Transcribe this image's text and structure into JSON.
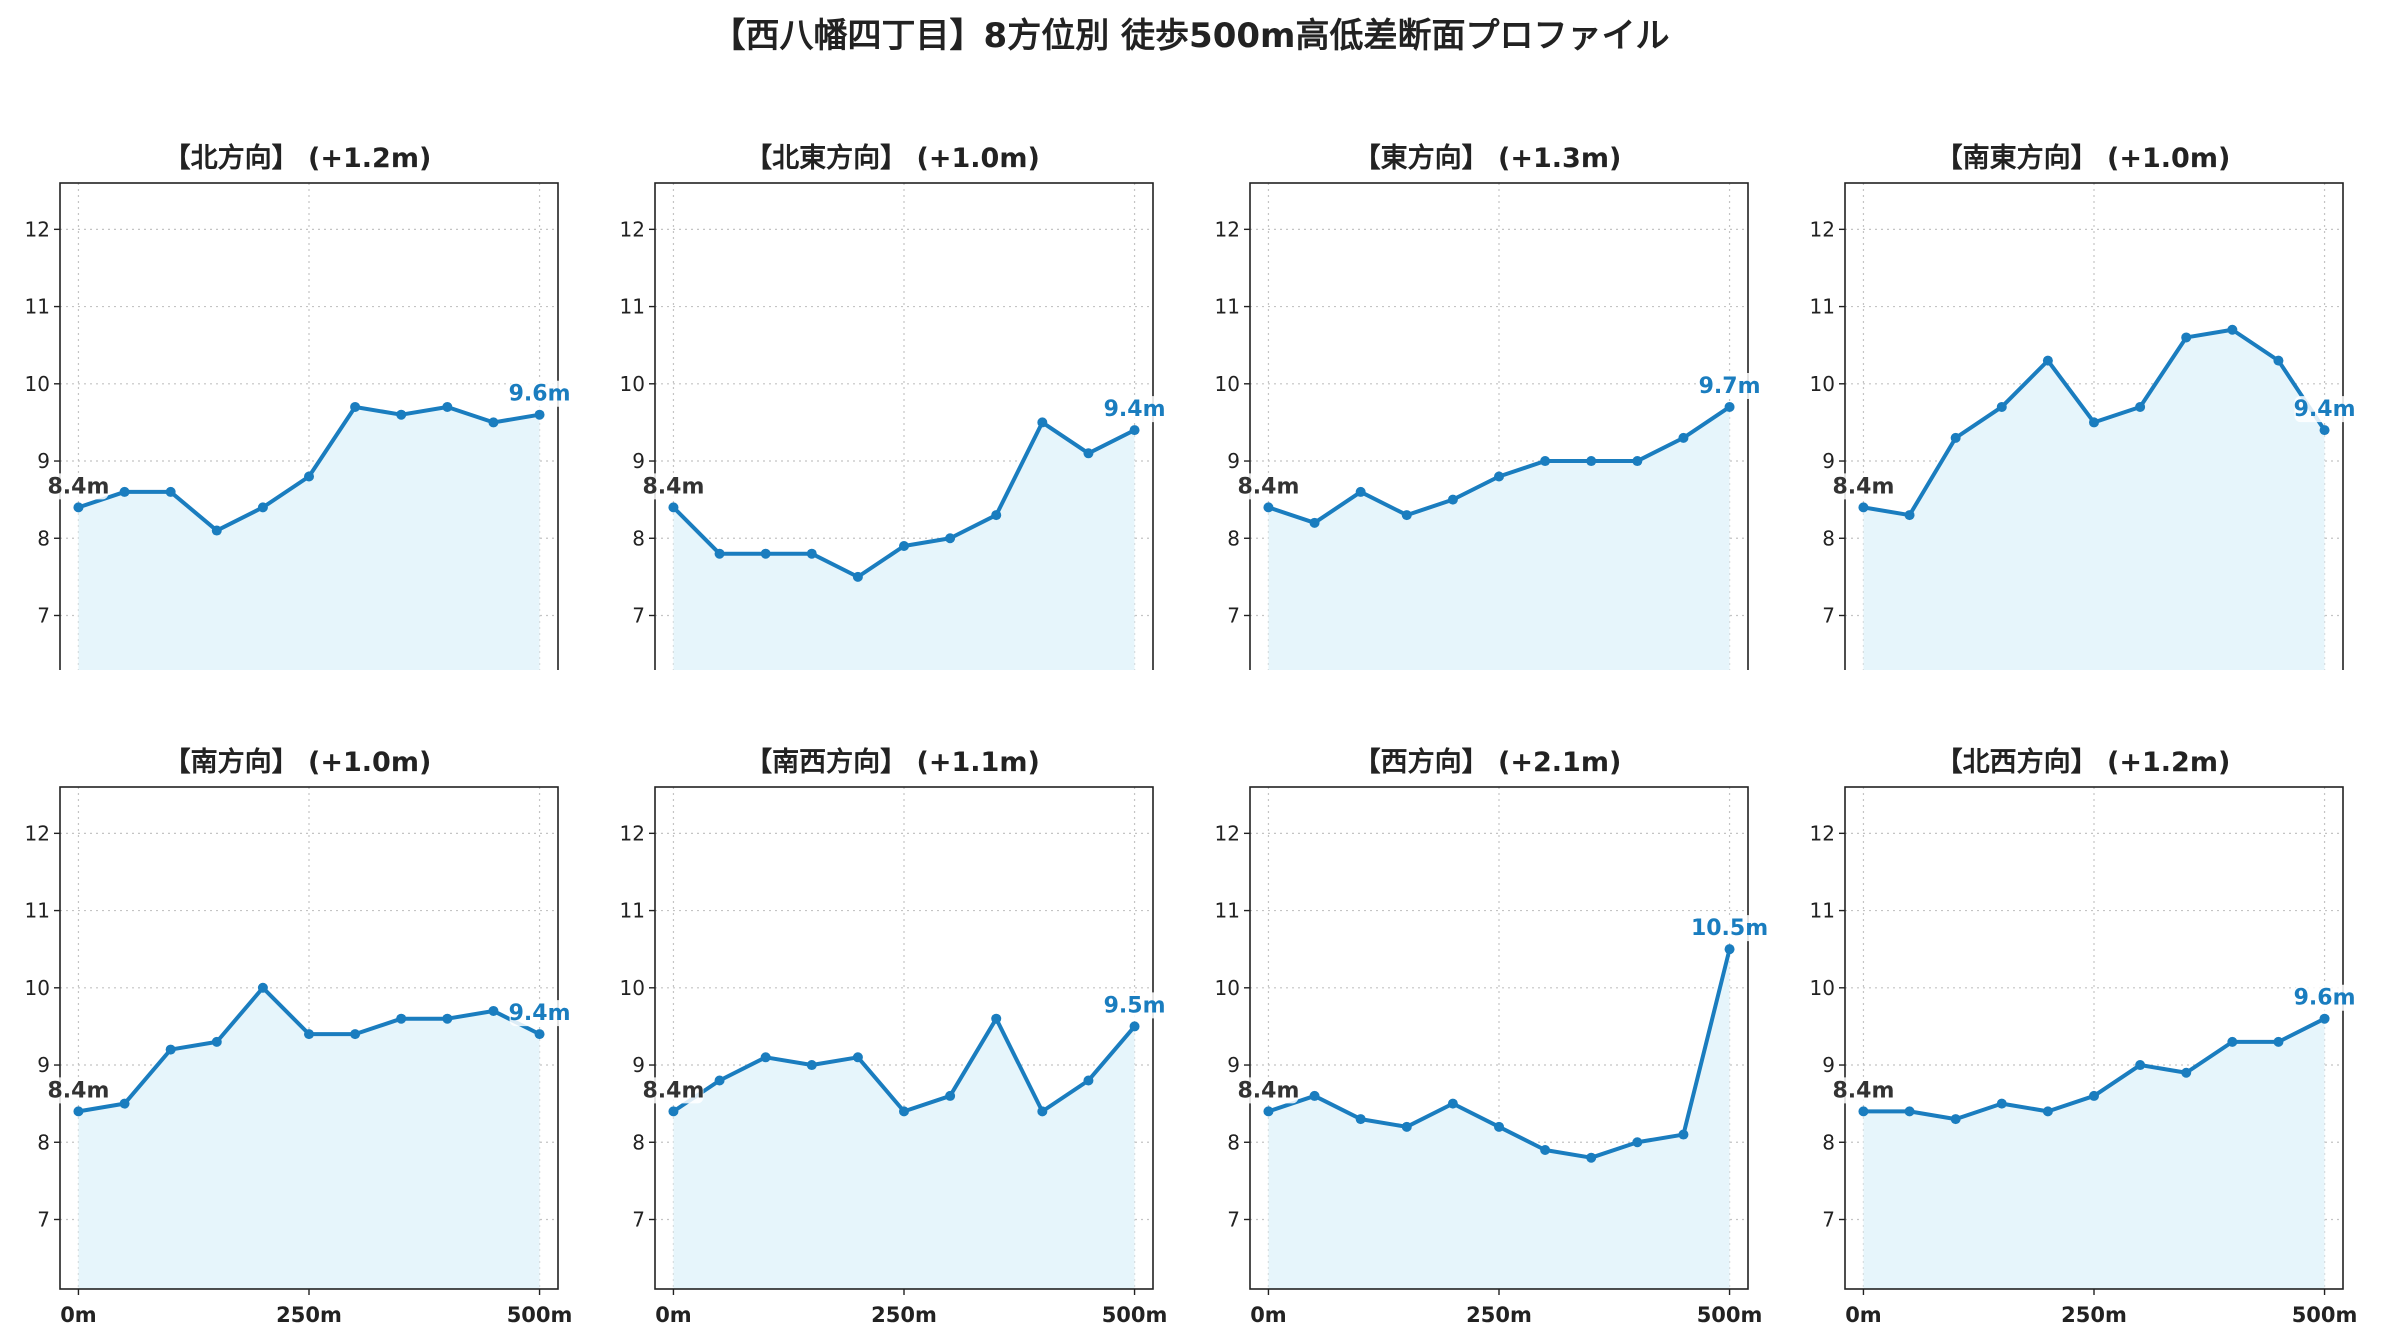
{
  "title": "【西八幡四丁目】8方位別 徒歩500m高低差断面プロファイル",
  "colors": {
    "line": "#1a7dbf",
    "fill": "#e6f5fb",
    "grid": "#c4c4c4",
    "start_label": "#333333",
    "end_label": "#1a7dbf"
  },
  "chart_data": [
    {
      "type": "area",
      "title": "【北方向】 (+1.2m)",
      "x": [
        0,
        50,
        100,
        150,
        200,
        250,
        300,
        350,
        400,
        450,
        500
      ],
      "y": [
        8.4,
        8.6,
        8.6,
        8.1,
        8.4,
        8.8,
        9.7,
        9.6,
        9.7,
        9.5,
        9.6
      ],
      "x_ticks": [
        "0m",
        "250m",
        "500m"
      ],
      "y_ticks": [
        "7",
        "8",
        "9",
        "10",
        "11",
        "12"
      ],
      "xlim": [
        -20,
        520
      ],
      "ylim": [
        6.1,
        12.6
      ],
      "start_label": "8.4m",
      "end_label": "9.6m",
      "grid": true
    },
    {
      "type": "area",
      "title": "【北東方向】 (+1.0m)",
      "x": [
        0,
        50,
        100,
        150,
        200,
        250,
        300,
        350,
        400,
        450,
        500
      ],
      "y": [
        8.4,
        7.8,
        7.8,
        7.8,
        7.5,
        7.9,
        8.0,
        8.3,
        9.5,
        9.1,
        9.4
      ],
      "x_ticks": [
        "0m",
        "250m",
        "500m"
      ],
      "y_ticks": [
        "7",
        "8",
        "9",
        "10",
        "11",
        "12"
      ],
      "xlim": [
        -20,
        520
      ],
      "ylim": [
        6.1,
        12.6
      ],
      "start_label": "8.4m",
      "end_label": "9.4m",
      "grid": true
    },
    {
      "type": "area",
      "title": "【東方向】 (+1.3m)",
      "x": [
        0,
        50,
        100,
        150,
        200,
        250,
        300,
        350,
        400,
        450,
        500
      ],
      "y": [
        8.4,
        8.2,
        8.6,
        8.3,
        8.5,
        8.8,
        9.0,
        9.0,
        9.0,
        9.3,
        9.7
      ],
      "x_ticks": [
        "0m",
        "250m",
        "500m"
      ],
      "y_ticks": [
        "7",
        "8",
        "9",
        "10",
        "11",
        "12"
      ],
      "xlim": [
        -20,
        520
      ],
      "ylim": [
        6.1,
        12.6
      ],
      "start_label": "8.4m",
      "end_label": "9.7m",
      "grid": true
    },
    {
      "type": "area",
      "title": "【南東方向】 (+1.0m)",
      "x": [
        0,
        50,
        100,
        150,
        200,
        250,
        300,
        350,
        400,
        450,
        500
      ],
      "y": [
        8.4,
        8.3,
        9.3,
        9.7,
        10.3,
        9.5,
        9.7,
        10.6,
        10.7,
        10.3,
        9.4
      ],
      "x_ticks": [
        "0m",
        "250m",
        "500m"
      ],
      "y_ticks": [
        "7",
        "8",
        "9",
        "10",
        "11",
        "12"
      ],
      "xlim": [
        -20,
        520
      ],
      "ylim": [
        6.1,
        12.6
      ],
      "start_label": "8.4m",
      "end_label": "9.4m",
      "grid": true
    },
    {
      "type": "area",
      "title": "【南方向】 (+1.0m)",
      "x": [
        0,
        50,
        100,
        150,
        200,
        250,
        300,
        350,
        400,
        450,
        500
      ],
      "y": [
        8.4,
        8.5,
        9.2,
        9.3,
        10.0,
        9.4,
        9.4,
        9.6,
        9.6,
        9.7,
        9.4
      ],
      "x_ticks": [
        "0m",
        "250m",
        "500m"
      ],
      "y_ticks": [
        "7",
        "8",
        "9",
        "10",
        "11",
        "12"
      ],
      "xlim": [
        -20,
        520
      ],
      "ylim": [
        6.1,
        12.6
      ],
      "start_label": "8.4m",
      "end_label": "9.4m",
      "grid": true
    },
    {
      "type": "area",
      "title": "【南西方向】 (+1.1m)",
      "x": [
        0,
        50,
        100,
        150,
        200,
        250,
        300,
        350,
        400,
        450,
        500
      ],
      "y": [
        8.4,
        8.8,
        9.1,
        9.0,
        9.1,
        8.4,
        8.6,
        9.6,
        8.4,
        8.8,
        9.5
      ],
      "x_ticks": [
        "0m",
        "250m",
        "500m"
      ],
      "y_ticks": [
        "7",
        "8",
        "9",
        "10",
        "11",
        "12"
      ],
      "xlim": [
        -20,
        520
      ],
      "ylim": [
        6.1,
        12.6
      ],
      "start_label": "8.4m",
      "end_label": "9.5m",
      "grid": true
    },
    {
      "type": "area",
      "title": "【西方向】 (+2.1m)",
      "x": [
        0,
        50,
        100,
        150,
        200,
        250,
        300,
        350,
        400,
        450,
        500
      ],
      "y": [
        8.4,
        8.6,
        8.3,
        8.2,
        8.5,
        8.2,
        7.9,
        7.8,
        8.0,
        8.1,
        10.5
      ],
      "x_ticks": [
        "0m",
        "250m",
        "500m"
      ],
      "y_ticks": [
        "7",
        "8",
        "9",
        "10",
        "11",
        "12"
      ],
      "xlim": [
        -20,
        520
      ],
      "ylim": [
        6.1,
        12.6
      ],
      "start_label": "8.4m",
      "end_label": "10.5m",
      "grid": true
    },
    {
      "type": "area",
      "title": "【北西方向】 (+1.2m)",
      "x": [
        0,
        50,
        100,
        150,
        200,
        250,
        300,
        350,
        400,
        450,
        500
      ],
      "y": [
        8.4,
        8.4,
        8.3,
        8.5,
        8.4,
        8.6,
        9.0,
        8.9,
        9.3,
        9.3,
        9.6
      ],
      "x_ticks": [
        "0m",
        "250m",
        "500m"
      ],
      "y_ticks": [
        "7",
        "8",
        "9",
        "10",
        "11",
        "12"
      ],
      "xlim": [
        -20,
        520
      ],
      "ylim": [
        6.1,
        12.6
      ],
      "start_label": "8.4m",
      "end_label": "9.6m",
      "grid": true
    }
  ]
}
